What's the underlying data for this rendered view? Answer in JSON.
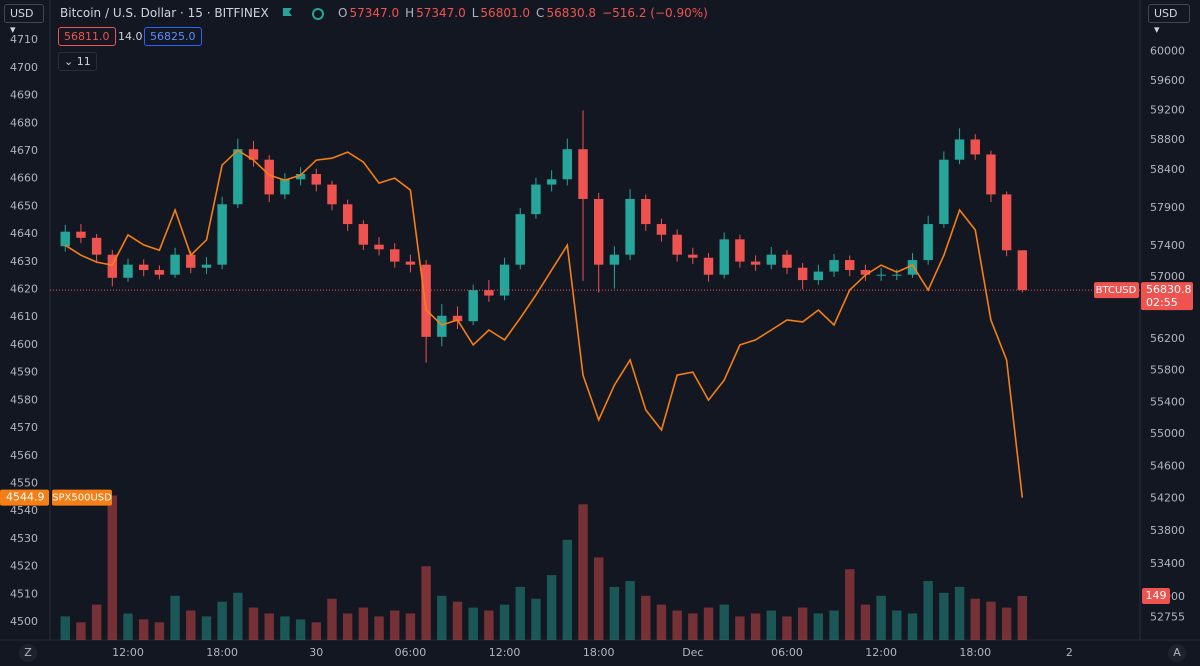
{
  "chart_data": {
    "type": "candlestick",
    "title": "Bitcoin / U.S. Dollar · 15 · BITFINEX",
    "legend_ohlc": [
      {
        "key": "O",
        "value": "57347.0"
      },
      {
        "key": "H",
        "value": "57347.0"
      },
      {
        "key": "L",
        "value": "56801.0"
      },
      {
        "key": "C",
        "value": "56830.8"
      }
    ],
    "change": "−516.2 (−0.90%)",
    "bid": "56811.0",
    "spread": "14.0",
    "ask": "56825.0",
    "indicator_count": "11",
    "currency": "USD",
    "countdown": "02:55",
    "categories": [
      null,
      null,
      null,
      null,
      "12:00",
      null,
      null,
      null,
      null,
      null,
      "18:00",
      null,
      null,
      null,
      null,
      null,
      "30",
      null,
      null,
      null,
      null,
      null,
      "06:00",
      null,
      null,
      null,
      null,
      null,
      "12:00",
      null,
      null,
      null,
      null,
      null,
      "18:00",
      null,
      null,
      null,
      null,
      null,
      "Dec",
      null,
      null,
      null,
      null,
      null,
      "06:00",
      null,
      null,
      null,
      null,
      null,
      "12:00",
      null,
      null,
      null,
      null,
      null,
      "18:00",
      null,
      null,
      null,
      null,
      null,
      "2",
      null,
      null,
      null,
      null
    ],
    "candles": {
      "name": "BTCUSD",
      "up_color": "#26a69a",
      "down_color": "#ef5350",
      "open": [
        57400,
        57590,
        57510,
        57290,
        56990,
        57160,
        57090,
        57030,
        57290,
        57120,
        57160,
        57950,
        58680,
        58540,
        58080,
        58280,
        58350,
        58210,
        57950,
        57690,
        57420,
        57360,
        57200,
        57160,
        56230,
        56500,
        56430,
        56830,
        56760,
        57160,
        57820,
        58210,
        58280,
        58680,
        58020,
        57160,
        57290,
        58020,
        57690,
        57550,
        57290,
        57250,
        57030,
        57490,
        57200,
        57160,
        57290,
        57120,
        56960,
        57070,
        57220,
        57090,
        57030,
        57030,
        57030,
        57220,
        57690,
        58540,
        58810,
        58610,
        58080,
        57347,
        null,
        null,
        null,
        null,
        null,
        null,
        null
      ],
      "high": [
        57680,
        57690,
        57560,
        57350,
        57240,
        57230,
        57150,
        57380,
        57340,
        57260,
        58050,
        58820,
        58790,
        58600,
        58360,
        58440,
        58420,
        58260,
        58010,
        57740,
        57520,
        57440,
        57290,
        57220,
        56650,
        56620,
        56900,
        56960,
        57250,
        57900,
        58300,
        58400,
        58820,
        59200,
        58100,
        57400,
        58150,
        58080,
        57760,
        57620,
        57380,
        57310,
        57580,
        57550,
        57280,
        57390,
        57350,
        57180,
        57160,
        57300,
        57280,
        57160,
        57120,
        57100,
        57310,
        57800,
        58650,
        58960,
        58880,
        58660,
        58120,
        57347,
        null,
        null,
        null,
        null,
        null,
        null,
        null
      ],
      "low": [
        57330,
        57440,
        57200,
        56880,
        56940,
        57010,
        56970,
        56990,
        57050,
        57040,
        57100,
        57900,
        58450,
        57980,
        58020,
        58200,
        58120,
        57870,
        57600,
        57350,
        57280,
        57120,
        57060,
        55900,
        56110,
        56330,
        56380,
        56680,
        56700,
        57100,
        57760,
        58120,
        58200,
        56950,
        56800,
        56850,
        57220,
        57600,
        57460,
        57200,
        57170,
        56940,
        56980,
        57120,
        57080,
        57100,
        57040,
        56840,
        56900,
        57000,
        57010,
        56950,
        56950,
        56960,
        56990,
        57160,
        57640,
        58480,
        58540,
        57980,
        57270,
        56801,
        null,
        null,
        null,
        null,
        null,
        null,
        null
      ],
      "close": [
        57590,
        57510,
        57290,
        56990,
        57160,
        57090,
        57030,
        57290,
        57120,
        57160,
        57950,
        58680,
        58540,
        58080,
        58280,
        58350,
        58210,
        57950,
        57690,
        57420,
        57360,
        57200,
        57160,
        56230,
        56500,
        56430,
        56830,
        56760,
        57160,
        57820,
        58210,
        58280,
        58680,
        58020,
        57160,
        57290,
        58020,
        57690,
        57550,
        57290,
        57250,
        57030,
        57490,
        57200,
        57160,
        57290,
        57120,
        56960,
        57070,
        57220,
        57090,
        57030,
        57030,
        57030,
        57220,
        57690,
        58540,
        58810,
        58610,
        58080,
        57347,
        56830.8,
        null,
        null,
        null,
        null,
        null,
        null,
        null
      ]
    },
    "ylim": [
      52486,
      60704
    ],
    "log_y": true,
    "yticks": [
      52755,
      53000,
      53400,
      53800,
      54200,
      54600,
      55000,
      55400,
      55800,
      56200,
      57000,
      57400,
      57900,
      58400,
      58800,
      59200,
      59600,
      60000
    ],
    "overlay": {
      "name": "SPX500USD",
      "color": "#f57f17",
      "axis": "y2",
      "values": [
        4636,
        4632.4,
        4629.9,
        4628.8,
        4639.7,
        4636.1,
        4634.2,
        4648.7,
        4632.4,
        4637.9,
        4664.9,
        4670.3,
        4666.7,
        4661.3,
        4659.5,
        4661.3,
        4666.7,
        4667.4,
        4669.6,
        4666,
        4658.4,
        4660.2,
        4655.9,
        4612.6,
        4607.2,
        4609,
        4600,
        4605.4,
        4601.8,
        4609.7,
        4618,
        4627,
        4636,
        4589.1,
        4572.9,
        4585.5,
        4594.6,
        4576.5,
        4569.3,
        4589.1,
        4590.2,
        4580.1,
        4587.3,
        4600,
        4601.8,
        4605.4,
        4609,
        4608.3,
        4612.6,
        4607.2,
        4619.8,
        4625.2,
        4628.8,
        4626.3,
        4628.8,
        4619.8,
        4632.4,
        4648.7,
        4641.5,
        4609,
        4594.6,
        4544.9,
        null,
        null,
        null,
        null,
        null,
        null,
        null
      ]
    },
    "y2lim": [
      4493.5,
      4724.5
    ],
    "y2ticks": [
      4500,
      4510,
      4520,
      4530,
      4540,
      4550,
      4560,
      4570,
      4580,
      4590,
      4600,
      4610,
      4620,
      4630,
      4640,
      4650,
      4660,
      4670,
      4680,
      4690,
      4700,
      4710
    ],
    "volume": {
      "ylim": [
        0,
        2170
      ],
      "values": [
        80,
        60,
        120,
        490,
        90,
        70,
        60,
        150,
        100,
        80,
        130,
        160,
        110,
        90,
        80,
        70,
        60,
        140,
        90,
        110,
        80,
        100,
        90,
        250,
        150,
        130,
        110,
        100,
        120,
        180,
        140,
        220,
        340,
        460,
        280,
        180,
        200,
        150,
        120,
        100,
        90,
        110,
        120,
        80,
        90,
        100,
        80,
        110,
        90,
        100,
        240,
        120,
        150,
        100,
        90,
        200,
        160,
        180,
        140,
        130,
        110,
        149,
        null,
        null,
        null,
        null,
        null,
        null,
        null
      ]
    },
    "grid": false,
    "zoom_button": "Z",
    "auto_button": "A"
  }
}
